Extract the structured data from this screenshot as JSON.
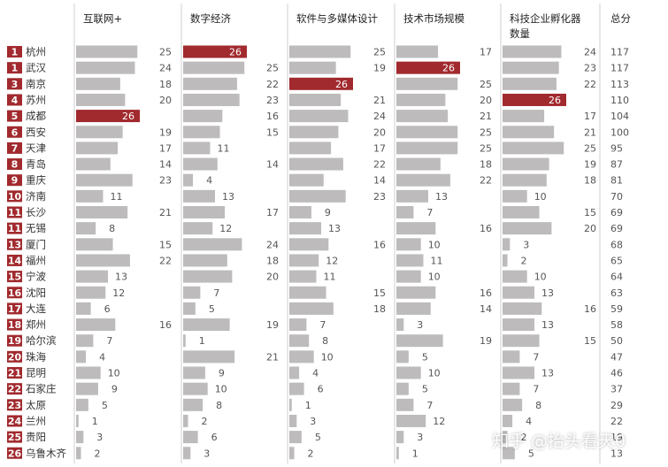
{
  "chart_data": {
    "type": "table",
    "headers": {
      "city": "",
      "columns": [
        "互联网+",
        "数字经济",
        "软件与多媒体设计",
        "技术市场规模",
        "科技企业孵化器数量"
      ],
      "total": "总分"
    },
    "highlight_color": "#a12a2e",
    "bar_color": "#bdbbbb",
    "rank_color": "#a12a2e",
    "max_value": 26,
    "rows": [
      {
        "rank": "1",
        "city": "杭州",
        "values": [
          25,
          26,
          25,
          17,
          24
        ],
        "total": "117"
      },
      {
        "rank": "1",
        "city": "武汉",
        "values": [
          24,
          25,
          19,
          26,
          23
        ],
        "total": "117"
      },
      {
        "rank": "3",
        "city": "南京",
        "values": [
          18,
          22,
          26,
          25,
          22
        ],
        "total": "113"
      },
      {
        "rank": "4",
        "city": "苏州",
        "values": [
          20,
          23,
          21,
          20,
          26
        ],
        "total": "110"
      },
      {
        "rank": "5",
        "city": "成都",
        "values": [
          26,
          16,
          24,
          21,
          17
        ],
        "total": "104"
      },
      {
        "rank": "6",
        "city": "西安",
        "values": [
          19,
          15,
          20,
          25,
          21
        ],
        "total": "100"
      },
      {
        "rank": "7",
        "city": "天津",
        "values": [
          17,
          11,
          17,
          25,
          25
        ],
        "total": "95"
      },
      {
        "rank": "8",
        "city": "青岛",
        "values": [
          14,
          14,
          22,
          18,
          19
        ],
        "total": "87"
      },
      {
        "rank": "9",
        "city": "重庆",
        "values": [
          23,
          4,
          14,
          22,
          18
        ],
        "total": "81"
      },
      {
        "rank": "10",
        "city": "济南",
        "values": [
          11,
          13,
          23,
          13,
          10
        ],
        "total": "70"
      },
      {
        "rank": "11",
        "city": "长沙",
        "values": [
          21,
          17,
          9,
          7,
          15
        ],
        "total": "69"
      },
      {
        "rank": "11",
        "city": "无锡",
        "values": [
          8,
          12,
          13,
          16,
          20
        ],
        "total": "69"
      },
      {
        "rank": "13",
        "city": "厦门",
        "values": [
          15,
          24,
          16,
          10,
          3
        ],
        "total": "68"
      },
      {
        "rank": "14",
        "city": "福州",
        "values": [
          22,
          18,
          12,
          11,
          2
        ],
        "total": "65"
      },
      {
        "rank": "15",
        "city": "宁波",
        "values": [
          13,
          20,
          11,
          10,
          10
        ],
        "total": "64"
      },
      {
        "rank": "16",
        "city": "沈阳",
        "values": [
          12,
          7,
          15,
          16,
          13
        ],
        "total": "63"
      },
      {
        "rank": "17",
        "city": "大连",
        "values": [
          6,
          5,
          18,
          14,
          16
        ],
        "total": "59"
      },
      {
        "rank": "18",
        "city": "郑州",
        "values": [
          16,
          19,
          7,
          3,
          13
        ],
        "total": "58"
      },
      {
        "rank": "19",
        "city": "哈尔滨",
        "values": [
          7,
          1,
          8,
          19,
          15
        ],
        "total": "50"
      },
      {
        "rank": "20",
        "city": "珠海",
        "values": [
          4,
          21,
          10,
          5,
          7
        ],
        "total": "47"
      },
      {
        "rank": "21",
        "city": "昆明",
        "values": [
          10,
          9,
          4,
          10,
          13
        ],
        "total": "46"
      },
      {
        "rank": "22",
        "city": "石家庄",
        "values": [
          9,
          10,
          6,
          5,
          7
        ],
        "total": "37"
      },
      {
        "rank": "23",
        "city": "太原",
        "values": [
          5,
          8,
          1,
          7,
          8
        ],
        "total": "29"
      },
      {
        "rank": "24",
        "city": "兰州",
        "values": [
          1,
          2,
          3,
          12,
          4
        ],
        "total": "22"
      },
      {
        "rank": "25",
        "city": "贵阳",
        "values": [
          3,
          6,
          5,
          3,
          2
        ],
        "total": "19"
      },
      {
        "rank": "26",
        "city": "乌鲁木齐",
        "values": [
          2,
          3,
          2,
          1,
          5
        ],
        "total": "13"
      }
    ]
  },
  "watermark": "知乎 @抬头看天0"
}
